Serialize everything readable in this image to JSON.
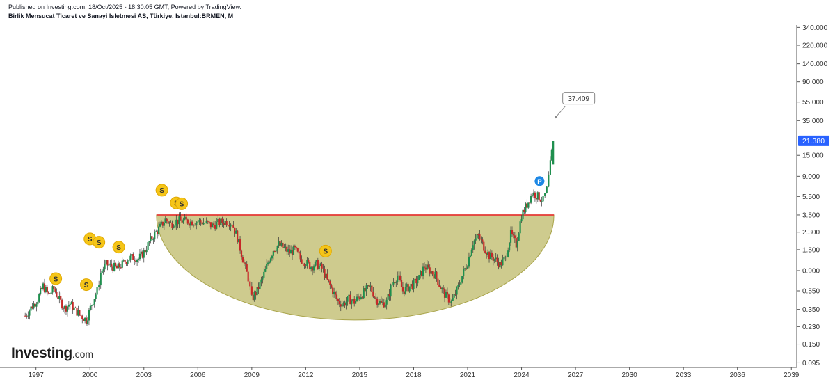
{
  "header": {
    "published": "Published on Investing.com, 18/Oct/2025 - 18:30:05 GMT, Powered by TradingView.",
    "instrument": "Birlik Mensucat Ticaret ve Sanayi Isletmesi AS, Türkiye, İstanbul:BRMEN, M"
  },
  "logo": {
    "brand": "Investing",
    "suffix": ".com"
  },
  "chart_data": {
    "type": "candlestick",
    "scale": "log",
    "x_ticks": [
      "1997",
      "2000",
      "2003",
      "2006",
      "2009",
      "2012",
      "2015",
      "2018",
      "2021",
      "2024",
      "2027",
      "2030",
      "2033",
      "2036",
      "2039"
    ],
    "y_ticks": [
      "340.000",
      "220.000",
      "140.000",
      "90.000",
      "55.000",
      "35.000",
      "21.380",
      "15.000",
      "9.000",
      "5.500",
      "3.500",
      "2.300",
      "1.500",
      "0.900",
      "0.550",
      "0.350",
      "0.230",
      "0.150",
      "0.095"
    ],
    "ylim": [
      0.085,
      360
    ],
    "xlim": [
      1995.0,
      2039.3
    ],
    "last_price": 21.38,
    "last_price_label": "21.380",
    "target_label": "37.409",
    "target_value": 37.409,
    "resistance_level": 3.5,
    "resistance_range": [
      2003.7,
      2025.8
    ],
    "cup_bottom": 0.27,
    "dividend_marker_label": "S",
    "dividend_markers": [
      {
        "x": 1998.1,
        "y": 0.74
      },
      {
        "x": 1999.8,
        "y": 0.64
      },
      {
        "x": 2000.0,
        "y": 1.95
      },
      {
        "x": 2000.5,
        "y": 1.8
      },
      {
        "x": 2001.6,
        "y": 1.6
      },
      {
        "x": 2004.0,
        "y": 6.4
      },
      {
        "x": 2004.8,
        "y": 4.7
      },
      {
        "x": 2005.1,
        "y": 4.6
      },
      {
        "x": 2013.1,
        "y": 1.45
      }
    ],
    "p_marker": {
      "label": "P",
      "x": 2025.0,
      "y": 8.0
    },
    "price_path": [
      [
        1996.4,
        0.3
      ],
      [
        1996.8,
        0.38
      ],
      [
        1997.1,
        0.45
      ],
      [
        1997.4,
        0.62
      ],
      [
        1997.7,
        0.5
      ],
      [
        1998.0,
        0.58
      ],
      [
        1998.3,
        0.44
      ],
      [
        1998.6,
        0.36
      ],
      [
        1998.9,
        0.4
      ],
      [
        1999.2,
        0.34
      ],
      [
        1999.5,
        0.3
      ],
      [
        1999.8,
        0.27
      ],
      [
        2000.1,
        0.4
      ],
      [
        2000.4,
        0.55
      ],
      [
        2000.6,
        0.85
      ],
      [
        2000.9,
        1.05
      ],
      [
        2001.2,
        1.0
      ],
      [
        2001.5,
        0.95
      ],
      [
        2001.8,
        1.05
      ],
      [
        2002.1,
        1.2
      ],
      [
        2002.4,
        1.25
      ],
      [
        2002.7,
        1.2
      ],
      [
        2003.0,
        1.4
      ],
      [
        2003.3,
        1.8
      ],
      [
        2003.6,
        2.2
      ],
      [
        2003.9,
        2.6
      ],
      [
        2004.2,
        3.1
      ],
      [
        2004.5,
        2.8
      ],
      [
        2004.8,
        3.0
      ],
      [
        2005.2,
        3.05
      ],
      [
        2005.6,
        2.95
      ],
      [
        2006.0,
        3.0
      ],
      [
        2006.4,
        2.9
      ],
      [
        2006.8,
        2.7
      ],
      [
        2007.2,
        2.9
      ],
      [
        2007.6,
        3.0
      ],
      [
        2007.9,
        2.9
      ],
      [
        2008.2,
        2.0
      ],
      [
        2008.5,
        1.2
      ],
      [
        2008.8,
        0.75
      ],
      [
        2009.0,
        0.45
      ],
      [
        2009.3,
        0.55
      ],
      [
        2009.6,
        0.75
      ],
      [
        2009.9,
        1.1
      ],
      [
        2010.2,
        1.5
      ],
      [
        2010.5,
        1.7
      ],
      [
        2010.8,
        1.55
      ],
      [
        2011.1,
        1.4
      ],
      [
        2011.4,
        1.5
      ],
      [
        2011.7,
        1.2
      ],
      [
        2012.0,
        1.1
      ],
      [
        2012.3,
        1.0
      ],
      [
        2012.6,
        1.05
      ],
      [
        2012.9,
        0.95
      ],
      [
        2013.2,
        0.7
      ],
      [
        2013.5,
        0.55
      ],
      [
        2013.8,
        0.42
      ],
      [
        2014.1,
        0.4
      ],
      [
        2014.4,
        0.45
      ],
      [
        2014.7,
        0.42
      ],
      [
        2015.0,
        0.48
      ],
      [
        2015.3,
        0.55
      ],
      [
        2015.6,
        0.6
      ],
      [
        2015.9,
        0.45
      ],
      [
        2016.2,
        0.4
      ],
      [
        2016.5,
        0.42
      ],
      [
        2016.8,
        0.65
      ],
      [
        2017.1,
        0.8
      ],
      [
        2017.4,
        0.55
      ],
      [
        2017.7,
        0.6
      ],
      [
        2018.0,
        0.65
      ],
      [
        2018.3,
        0.75
      ],
      [
        2018.6,
        1.0
      ],
      [
        2018.9,
        0.9
      ],
      [
        2019.2,
        0.8
      ],
      [
        2019.5,
        0.6
      ],
      [
        2019.8,
        0.48
      ],
      [
        2020.1,
        0.42
      ],
      [
        2020.4,
        0.55
      ],
      [
        2020.7,
        0.8
      ],
      [
        2021.0,
        1.1
      ],
      [
        2021.3,
        1.8
      ],
      [
        2021.6,
        2.1
      ],
      [
        2021.9,
        1.6
      ],
      [
        2022.2,
        1.3
      ],
      [
        2022.5,
        1.2
      ],
      [
        2022.8,
        1.05
      ],
      [
        2023.1,
        1.2
      ],
      [
        2023.4,
        2.2
      ],
      [
        2023.7,
        1.7
      ],
      [
        2024.0,
        3.5
      ],
      [
        2024.3,
        4.5
      ],
      [
        2024.6,
        6.0
      ],
      [
        2024.9,
        5.5
      ],
      [
        2025.2,
        5.0
      ],
      [
        2025.4,
        6.5
      ],
      [
        2025.6,
        12.0
      ],
      [
        2025.75,
        21.38
      ]
    ]
  }
}
